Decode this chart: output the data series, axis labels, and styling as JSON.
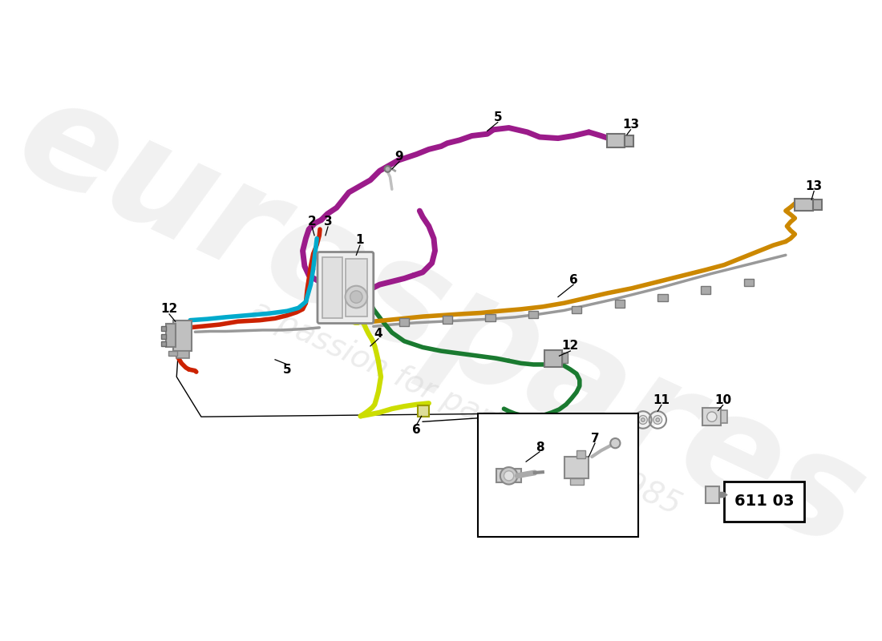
{
  "background_color": "#ffffff",
  "colors": {
    "purple": "#9B1B8A",
    "red": "#CC2200",
    "cyan": "#00AACC",
    "yellow_green": "#CCDD00",
    "green_dark": "#1A7A30",
    "gold": "#CC8800",
    "gray": "#999999",
    "light_gray": "#C8C8C8",
    "black": "#111111",
    "white": "#FFFFFF"
  },
  "part_number": "611 03",
  "coord_system": "pixel_based_normalized"
}
